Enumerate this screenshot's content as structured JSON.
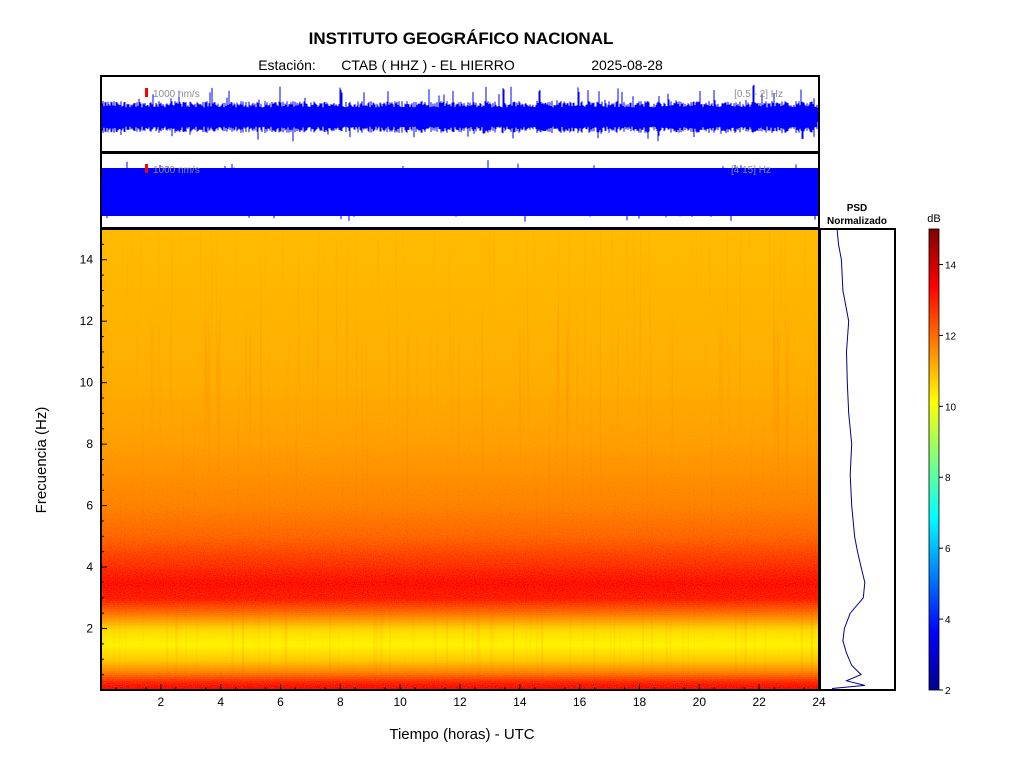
{
  "title": "INSTITUTO GEOGRÁFICO NACIONAL",
  "subtitle": {
    "station_label": "Estación:",
    "station": "CTAB ( HHZ ) - EL HIERRO",
    "date": "2025-08-28"
  },
  "traces": [
    {
      "scale_label": "1000 nm/s",
      "band_label": "[0.5 - 2] Hz",
      "color": "#0000ff"
    },
    {
      "scale_label": "1000 nm/s",
      "band_label": "[4 15] Hz",
      "color": "#0000ff"
    }
  ],
  "psd_panel": {
    "title_line1": "PSD",
    "title_line2": "Normalizado"
  },
  "colorbar": {
    "unit": "dB",
    "min": 2,
    "max": 15,
    "ticks": [
      "2",
      "4",
      "6",
      "8",
      "10",
      "12",
      "14"
    ]
  },
  "chart_data": [
    {
      "type": "heatmap",
      "xlabel": "Tiempo (horas) - UTC",
      "ylabel": "Frecuencia  (Hz)",
      "xlim": [
        0,
        24
      ],
      "ylim": [
        0,
        15
      ],
      "x_ticks": [
        "2",
        "4",
        "6",
        "8",
        "10",
        "12",
        "14",
        "16",
        "18",
        "20",
        "22",
        "24"
      ],
      "y_ticks": [
        "2",
        "4",
        "6",
        "8",
        "10",
        "12",
        "14"
      ],
      "colorscale": "jet",
      "frequency_profile_db": [
        {
          "f": 0.1,
          "db": 13.5
        },
        {
          "f": 0.3,
          "db": 13.0
        },
        {
          "f": 0.6,
          "db": 11.8
        },
        {
          "f": 1.0,
          "db": 10.8
        },
        {
          "f": 1.5,
          "db": 10.2
        },
        {
          "f": 2.0,
          "db": 10.6
        },
        {
          "f": 2.6,
          "db": 12.2
        },
        {
          "f": 3.0,
          "db": 13.2
        },
        {
          "f": 3.5,
          "db": 13.4
        },
        {
          "f": 4.0,
          "db": 13.0
        },
        {
          "f": 4.5,
          "db": 12.6
        },
        {
          "f": 5.0,
          "db": 12.2
        },
        {
          "f": 6.0,
          "db": 11.8
        },
        {
          "f": 8.0,
          "db": 11.4
        },
        {
          "f": 10.0,
          "db": 11.2
        },
        {
          "f": 12.0,
          "db": 11.1
        },
        {
          "f": 15.0,
          "db": 11.0
        }
      ]
    },
    {
      "type": "line",
      "name": "PSD Normalizado",
      "x_axis": "normalized PSD",
      "y_axis": "frequency (Hz)",
      "ylim": [
        0,
        15
      ],
      "points": [
        {
          "f": 0.05,
          "v": 0.15
        },
        {
          "f": 0.15,
          "v": 0.6
        },
        {
          "f": 0.3,
          "v": 0.35
        },
        {
          "f": 0.5,
          "v": 0.55
        },
        {
          "f": 0.8,
          "v": 0.42
        },
        {
          "f": 1.2,
          "v": 0.35
        },
        {
          "f": 1.6,
          "v": 0.3
        },
        {
          "f": 2.0,
          "v": 0.32
        },
        {
          "f": 2.5,
          "v": 0.4
        },
        {
          "f": 3.0,
          "v": 0.58
        },
        {
          "f": 3.5,
          "v": 0.6
        },
        {
          "f": 4.0,
          "v": 0.55
        },
        {
          "f": 4.5,
          "v": 0.5
        },
        {
          "f": 5.0,
          "v": 0.46
        },
        {
          "f": 6.0,
          "v": 0.42
        },
        {
          "f": 7.0,
          "v": 0.4
        },
        {
          "f": 8.0,
          "v": 0.42
        },
        {
          "f": 9.0,
          "v": 0.38
        },
        {
          "f": 10.0,
          "v": 0.36
        },
        {
          "f": 11.0,
          "v": 0.35
        },
        {
          "f": 12.0,
          "v": 0.38
        },
        {
          "f": 13.0,
          "v": 0.3
        },
        {
          "f": 14.0,
          "v": 0.28
        },
        {
          "f": 14.5,
          "v": 0.24
        },
        {
          "f": 15.0,
          "v": 0.22
        }
      ]
    }
  ]
}
